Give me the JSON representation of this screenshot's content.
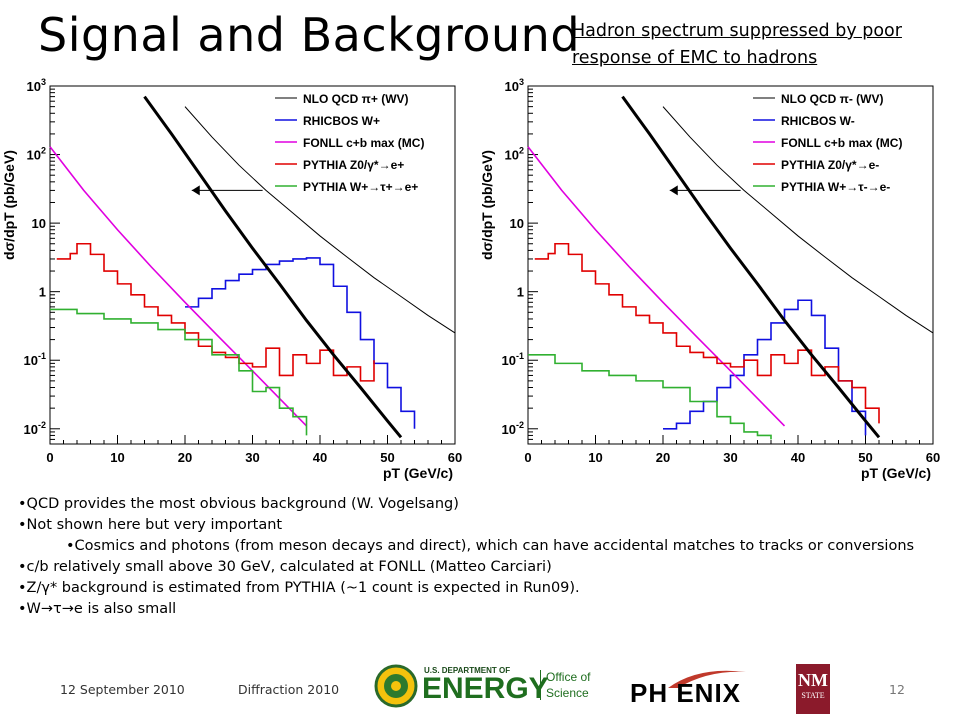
{
  "slide": {
    "title": "Signal and Background",
    "note_line1": "Hadron spectrum suppressed by poor",
    "note_line2": "response of EMC to hadrons",
    "bullets": [
      "•QCD provides the most obvious background (W. Vogelsang)",
      "•Not shown here but very important",
      "•Cosmics and photons (from meson decays and direct), which can have accidental matches to tracks or conversions",
      "•c/b relatively small above 30 GeV, calculated at FONLL (Matteo Carciari)",
      "•Z/γ* background is estimated from PYTHIA (~1 count is expected in Run09).",
      "•W→τ→e is also small"
    ],
    "footer_date": "12 September 2010",
    "footer_event": "Diffraction 2010",
    "page_number": "12",
    "logos": {
      "doe_small": "U.S. DEPARTMENT OF",
      "doe_big": "ENERGY",
      "office1": "Office of",
      "office2": "Science",
      "phenix": "PH ENIX",
      "nm1": "NM",
      "nm2": "STATE"
    }
  },
  "chart_data": [
    {
      "type": "line",
      "xlabel": "p_T (GeV/c)",
      "ylabel": "dσ/dp_T (pb/GeV)",
      "xlim": [
        0,
        60
      ],
      "ylim": [
        0.006,
        1000
      ],
      "yscale": "log",
      "xticks": [
        "0",
        "10",
        "20",
        "30",
        "40",
        "50",
        "60"
      ],
      "yticks": [
        "10^-2",
        "10^-1",
        "1",
        "10",
        "10^2",
        "10^3"
      ],
      "legend_position": "top-right",
      "series": [
        {
          "name": "NLO QCD π+ (WV)",
          "color": "#000000",
          "x": [
            20,
            24,
            28,
            32,
            36,
            40,
            44,
            48,
            52,
            56,
            60
          ],
          "y": [
            500,
            180,
            70,
            30,
            14,
            6.5,
            3.2,
            1.6,
            0.85,
            0.45,
            0.25
          ]
        },
        {
          "name": "RHICBOS W+",
          "color": "#1010e0",
          "x": [
            20,
            22,
            24,
            26,
            28,
            30,
            32,
            34,
            36,
            38,
            40,
            42,
            44,
            46,
            48,
            50,
            52,
            54
          ],
          "y": [
            0.6,
            0.8,
            1.1,
            1.45,
            1.8,
            2.1,
            2.5,
            2.8,
            3.0,
            3.1,
            2.5,
            1.2,
            0.5,
            0.2,
            0.09,
            0.04,
            0.018,
            0.01
          ]
        },
        {
          "name": "FONLL c+b max (MC)",
          "color": "#e000e0",
          "x": [
            0,
            5,
            10,
            15,
            20,
            25,
            30,
            35,
            38
          ],
          "y": [
            130,
            30,
            8,
            2.3,
            0.7,
            0.22,
            0.07,
            0.022,
            0.011
          ]
        },
        {
          "name": "PYTHIA Z0/γ*→e+",
          "color": "#e00000",
          "x": [
            1,
            3,
            4,
            6,
            8,
            10,
            12,
            14,
            16,
            18,
            20,
            22,
            24,
            26,
            28,
            30,
            32,
            34,
            36,
            38,
            40,
            42,
            44,
            46,
            48
          ],
          "y": [
            3.0,
            3.6,
            5.0,
            3.5,
            2.0,
            1.3,
            0.9,
            0.6,
            0.45,
            0.35,
            0.25,
            0.16,
            0.13,
            0.11,
            0.09,
            0.08,
            0.15,
            0.06,
            0.12,
            0.09,
            0.14,
            0.06,
            0.08,
            0.05,
            0.1
          ]
        },
        {
          "name": "PYTHIA W+→τ+→e+",
          "color": "#30b030",
          "x": [
            0,
            4,
            8,
            12,
            16,
            20,
            24,
            28,
            30,
            32,
            34,
            36,
            38
          ],
          "y": [
            0.55,
            0.48,
            0.4,
            0.35,
            0.28,
            0.2,
            0.12,
            0.07,
            0.035,
            0.04,
            0.02,
            0.015,
            0.008
          ]
        }
      ]
    },
    {
      "type": "line",
      "xlabel": "p_T (GeV/c)",
      "ylabel": "dσ/dp_T (pb/GeV)",
      "xlim": [
        0,
        60
      ],
      "ylim": [
        0.006,
        1000
      ],
      "yscale": "log",
      "xticks": [
        "0",
        "10",
        "20",
        "30",
        "40",
        "50",
        "60"
      ],
      "yticks": [
        "10^-2",
        "10^-1",
        "1",
        "10",
        "10^2",
        "10^3"
      ],
      "legend_position": "top-right",
      "series": [
        {
          "name": "NLO QCD π- (WV)",
          "color": "#000000",
          "x": [
            20,
            24,
            28,
            32,
            36,
            40,
            44,
            48,
            52,
            56,
            60
          ],
          "y": [
            500,
            180,
            70,
            30,
            14,
            6.5,
            3.2,
            1.6,
            0.85,
            0.45,
            0.25
          ]
        },
        {
          "name": "RHICBOS W-",
          "color": "#1010e0",
          "x": [
            20,
            22,
            24,
            26,
            28,
            30,
            32,
            34,
            36,
            38,
            40,
            42,
            44,
            46,
            48,
            50
          ],
          "y": [
            0.01,
            0.012,
            0.018,
            0.025,
            0.04,
            0.06,
            0.12,
            0.2,
            0.35,
            0.55,
            0.75,
            0.45,
            0.15,
            0.05,
            0.018,
            0.008
          ]
        },
        {
          "name": "FONLL c+b max (MC)",
          "color": "#e000e0",
          "x": [
            0,
            5,
            10,
            15,
            20,
            25,
            30,
            35,
            38
          ],
          "y": [
            130,
            30,
            8,
            2.3,
            0.7,
            0.22,
            0.07,
            0.022,
            0.011
          ]
        },
        {
          "name": "PYTHIA Z0/γ*→e-",
          "color": "#e00000",
          "x": [
            1,
            3,
            4,
            6,
            8,
            10,
            12,
            14,
            16,
            18,
            20,
            22,
            24,
            26,
            28,
            30,
            32,
            34,
            36,
            38,
            40,
            42,
            44,
            46,
            48,
            50,
            52
          ],
          "y": [
            3.0,
            3.6,
            5.0,
            3.5,
            2.0,
            1.3,
            0.9,
            0.6,
            0.45,
            0.35,
            0.25,
            0.16,
            0.13,
            0.11,
            0.09,
            0.08,
            0.1,
            0.06,
            0.12,
            0.09,
            0.14,
            0.06,
            0.08,
            0.05,
            0.04,
            0.02,
            0.012
          ]
        },
        {
          "name": "PYTHIA W+→τ-→e-",
          "color": "#30b030",
          "x": [
            0,
            4,
            8,
            12,
            16,
            20,
            24,
            28,
            30,
            32,
            34,
            36
          ],
          "y": [
            0.12,
            0.09,
            0.07,
            0.06,
            0.05,
            0.04,
            0.025,
            0.015,
            0.012,
            0.009,
            0.008,
            0.007
          ]
        }
      ]
    }
  ]
}
